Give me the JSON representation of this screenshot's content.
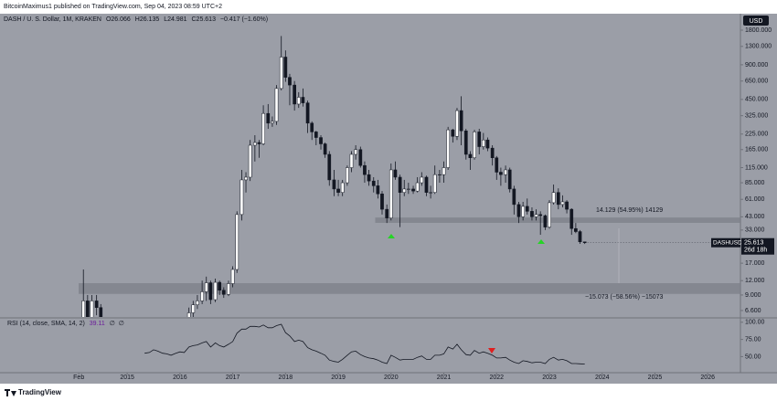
{
  "header": {
    "publisher": "BitcoinMaximus1 published on TradingView.com, Sep 04, 2023 08:59 UTC+2",
    "symbol": "DASH / U. S. Dollar, 1M, KRAKEN",
    "ohlc_labels": [
      "O",
      "H",
      "L",
      "C"
    ],
    "change": "−0.417 (−1.60%)",
    "currency": "USD",
    "ticker": "DASHUSD",
    "countdown": "26d 18h",
    "footer": "TradingView"
  },
  "chart_data": [
    {
      "type": "candlestick",
      "log_scale": true,
      "up_color": "#ffffff",
      "down_color": "#131722",
      "zone_color": "#7c7f88",
      "xlim": [
        2012.59,
        2026.62
      ],
      "xticks": [
        {
          "value": 2014.083,
          "label": "Feb"
        },
        2015,
        2016,
        2017,
        2018,
        2019,
        2020,
        2021,
        2022,
        2023,
        2024,
        2025,
        2026
      ],
      "ylim": [
        5.8,
        2500
      ],
      "yticks": [
        {
          "value": 1800,
          "label": "1800.000"
        },
        {
          "value": 1300,
          "label": "1300.000"
        },
        {
          "value": 900,
          "label": "900.000"
        },
        {
          "value": 650,
          "label": "650.000"
        },
        {
          "value": 450,
          "label": "450.000"
        },
        {
          "value": 325,
          "label": "325.000"
        },
        {
          "value": 225,
          "label": "225.000"
        },
        {
          "value": 165,
          "label": "165.000"
        },
        {
          "value": 115,
          "label": "115.000"
        },
        {
          "value": 85,
          "label": "85.000"
        },
        {
          "value": 61,
          "label": "61.000"
        },
        {
          "value": 43,
          "label": "43.000"
        },
        {
          "value": 33,
          "label": "33.000"
        },
        {
          "value": 24,
          "label": "24.000"
        },
        {
          "value": 17,
          "label": "17.000"
        },
        {
          "value": 12,
          "label": "12.000"
        },
        {
          "value": 9,
          "label": "9.000"
        },
        {
          "value": 6.6,
          "label": "6.600"
        }
      ],
      "zones": [
        {
          "low": 38.1,
          "high": 42.4,
          "start": 2019.7
        },
        {
          "low": 9.2,
          "high": 11.4,
          "start": 2014.08
        }
      ],
      "annotations": [
        "14.129 (54.95%) 14129",
        "−15.073 (−58.56%) −15073"
      ],
      "x": [
        2014.17,
        2014.25,
        2014.33,
        2014.42,
        2014.5,
        2014.58,
        2014.67,
        2014.75,
        2014.83,
        2014.92,
        2015,
        2015.08,
        2015.17,
        2015.25,
        2015.33,
        2015.42,
        2015.5,
        2015.58,
        2015.67,
        2015.75,
        2015.83,
        2015.92,
        2016,
        2016.08,
        2016.17,
        2016.25,
        2016.33,
        2016.42,
        2016.5,
        2016.58,
        2016.67,
        2016.75,
        2016.83,
        2016.92,
        2017,
        2017.08,
        2017.17,
        2017.25,
        2017.33,
        2017.42,
        2017.5,
        2017.58,
        2017.67,
        2017.75,
        2017.83,
        2017.92,
        2018,
        2018.08,
        2018.17,
        2018.25,
        2018.33,
        2018.42,
        2018.5,
        2018.58,
        2018.67,
        2018.75,
        2018.83,
        2018.92,
        2019,
        2019.08,
        2019.17,
        2019.25,
        2019.33,
        2019.42,
        2019.5,
        2019.58,
        2019.67,
        2019.75,
        2019.83,
        2019.92,
        2020,
        2020.08,
        2020.17,
        2020.25,
        2020.33,
        2020.42,
        2020.5,
        2020.58,
        2020.67,
        2020.75,
        2020.83,
        2020.92,
        2021,
        2021.08,
        2021.17,
        2021.25,
        2021.33,
        2021.42,
        2021.5,
        2021.58,
        2021.67,
        2021.75,
        2021.83,
        2021.92,
        2022,
        2022.08,
        2022.17,
        2022.25,
        2022.33,
        2022.42,
        2022.5,
        2022.58,
        2022.67,
        2022.75,
        2022.83,
        2022.92,
        2023,
        2023.08,
        2023.17,
        2023.25,
        2023.33,
        2023.42,
        2023.5,
        2023.58,
        2023.67
      ],
      "open": [
        1.5,
        8,
        5,
        8,
        7,
        5,
        3,
        3,
        2.5,
        2.3,
        2.2,
        1.5,
        1.3,
        1.3,
        1.8,
        2.6,
        2.7,
        4.0,
        3.8,
        3.2,
        3.0,
        2.6,
        3.2,
        3.9,
        3.8,
        6.3,
        7.4,
        8.0,
        9.6,
        11.5,
        8.2,
        11.6,
        9.9,
        9.1,
        11.3,
        15,
        45,
        90,
        95,
        180,
        190,
        185,
        340,
        280,
        290,
        560,
        1050,
        700,
        600,
        410,
        470,
        420,
        280,
        235,
        210,
        185,
        150,
        90,
        75,
        70,
        85,
        115,
        150,
        165,
        120,
        100,
        88,
        80,
        68,
        50,
        42,
        110,
        95,
        70,
        75,
        75,
        72,
        85,
        95,
        70,
        70,
        100,
        100,
        115,
        245,
        215,
        360,
        240,
        150,
        140,
        235,
        175,
        200,
        170,
        140,
        105,
        100,
        110,
        75,
        55,
        43,
        53,
        48,
        43,
        45,
        44,
        35,
        57,
        70,
        55,
        58,
        50,
        34,
        32,
        26.066
      ],
      "high": [
        15,
        9,
        9,
        9,
        7.5,
        5.5,
        3.6,
        3.3,
        2.8,
        2.5,
        2.4,
        1.7,
        1.5,
        2.0,
        3.0,
        3.2,
        4.5,
        4.3,
        4.0,
        3.4,
        3.2,
        3.5,
        4.2,
        4.3,
        7.0,
        8.0,
        9.0,
        12,
        13,
        12,
        12.5,
        12,
        10.5,
        12,
        16,
        48,
        110,
        105,
        200,
        220,
        200,
        400,
        410,
        320,
        600,
        1600,
        1200,
        750,
        650,
        520,
        560,
        440,
        290,
        240,
        220,
        190,
        160,
        110,
        90,
        90,
        120,
        160,
        180,
        175,
        130,
        110,
        95,
        90,
        72,
        55,
        125,
        130,
        100,
        90,
        85,
        80,
        95,
        105,
        98,
        80,
        120,
        110,
        130,
        260,
        250,
        380,
        480,
        250,
        160,
        245,
        250,
        230,
        210,
        180,
        145,
        115,
        120,
        115,
        80,
        58,
        58,
        62,
        52,
        50,
        48,
        45,
        60,
        82,
        76,
        66,
        60,
        51,
        38,
        33,
        26.135
      ],
      "low": [
        1.3,
        4.5,
        4.5,
        6,
        4.5,
        2.8,
        2.6,
        2.2,
        2.1,
        1.9,
        1.3,
        1.2,
        1.1,
        1.2,
        1.7,
        2.3,
        2.5,
        3.3,
        3.0,
        2.6,
        2.3,
        2.5,
        3.0,
        3.5,
        3.6,
        5.8,
        6.8,
        7.5,
        8.0,
        7.5,
        7.8,
        9.0,
        8.5,
        8.8,
        10.5,
        14,
        40,
        70,
        88,
        130,
        140,
        180,
        250,
        260,
        270,
        540,
        640,
        400,
        360,
        380,
        390,
        230,
        200,
        180,
        165,
        140,
        80,
        65,
        65,
        65,
        80,
        105,
        135,
        115,
        85,
        80,
        70,
        62,
        45,
        38,
        40,
        90,
        35,
        65,
        68,
        68,
        70,
        80,
        65,
        62,
        68,
        85,
        85,
        110,
        190,
        200,
        180,
        135,
        110,
        135,
        150,
        165,
        160,
        120,
        90,
        80,
        85,
        70,
        45,
        38,
        40,
        45,
        40,
        40,
        30,
        33,
        34,
        55,
        50,
        52,
        46,
        30,
        31,
        25,
        24.981
      ],
      "close": [
        8,
        5,
        8,
        7,
        5,
        3,
        3,
        2.5,
        2.3,
        2.2,
        1.5,
        1.3,
        1.3,
        1.8,
        2.6,
        2.7,
        4.0,
        3.8,
        3.2,
        3.0,
        2.6,
        3.2,
        3.9,
        3.8,
        6.3,
        7.4,
        8.0,
        9.6,
        11.5,
        8.2,
        11.6,
        9.9,
        9.1,
        11.3,
        15,
        45,
        90,
        95,
        180,
        190,
        185,
        340,
        280,
        290,
        560,
        1050,
        700,
        600,
        410,
        470,
        420,
        280,
        235,
        210,
        185,
        150,
        90,
        75,
        70,
        85,
        115,
        150,
        165,
        120,
        100,
        88,
        80,
        68,
        50,
        42,
        110,
        95,
        70,
        75,
        75,
        72,
        85,
        95,
        70,
        70,
        100,
        100,
        115,
        245,
        215,
        360,
        240,
        150,
        140,
        235,
        175,
        200,
        170,
        140,
        105,
        100,
        110,
        75,
        55,
        43,
        53,
        48,
        43,
        45,
        44,
        35,
        57,
        70,
        55,
        58,
        50,
        34,
        32,
        26.066,
        25.613
      ]
    },
    {
      "type": "line",
      "title": "RSI (14, close, SMA, 14, 2)",
      "na_values": [
        "∅",
        "∅"
      ],
      "color": "#131722",
      "ylim": [
        28,
        105
      ],
      "yticks": [
        {
          "value": 100,
          "label": "100.00"
        },
        {
          "value": 75,
          "label": "75.00"
        },
        {
          "value": 50,
          "label": "50.00"
        }
      ],
      "values": [
        null,
        null,
        null,
        null,
        null,
        null,
        null,
        null,
        null,
        null,
        null,
        null,
        null,
        null,
        55,
        56,
        60,
        58,
        55,
        54,
        52,
        55,
        57,
        56,
        64,
        66,
        67,
        70,
        72,
        64,
        70,
        66,
        64,
        68,
        72,
        84,
        90,
        90,
        94,
        94,
        93,
        96,
        92,
        92,
        95,
        97,
        85,
        80,
        72,
        74,
        72,
        63,
        60,
        58,
        55,
        52,
        45,
        43,
        42,
        46,
        52,
        57,
        58,
        53,
        50,
        48,
        47,
        45,
        42,
        40,
        52,
        49,
        45,
        46,
        46,
        46,
        49,
        51,
        46,
        46,
        52,
        52,
        54,
        64,
        61,
        68,
        60,
        53,
        52,
        59,
        55,
        57,
        55,
        52,
        48,
        48,
        49,
        45,
        42,
        40,
        44,
        43,
        41,
        42,
        42,
        40,
        46,
        49,
        45,
        46,
        44,
        40,
        40,
        39.5,
        39.11
      ]
    }
  ]
}
